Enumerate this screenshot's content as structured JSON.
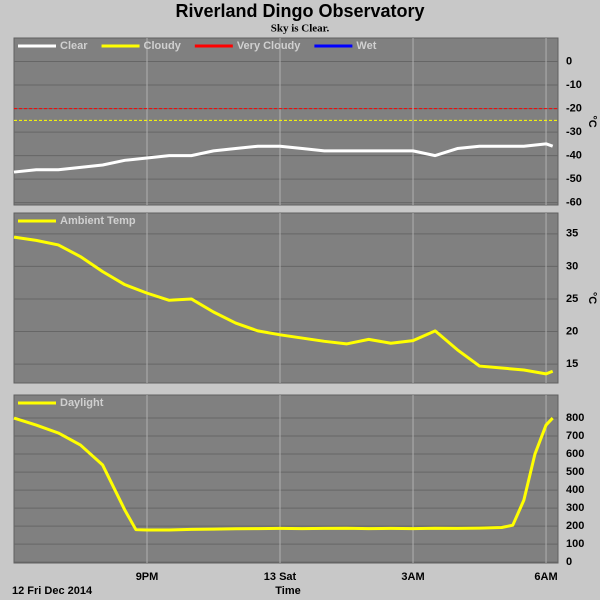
{
  "title": "Riverland Dingo Observatory",
  "subtitle": "Sky is Clear.",
  "chart_data": [
    {
      "type": "line",
      "ylabel": "°C",
      "x": [
        18,
        18.5,
        19,
        19.5,
        20,
        20.5,
        21,
        21.5,
        22,
        22.5,
        23,
        23.5,
        24,
        24.5,
        25,
        25.5,
        26,
        26.5,
        27,
        27.5,
        28,
        28.5,
        29,
        29.5,
        30,
        30.15
      ],
      "xlim": [
        18,
        30.27
      ],
      "series": [
        {
          "name": "Clear",
          "color": "#ffffff",
          "values": [
            -47,
            -46,
            -46,
            -45,
            -44,
            -42,
            -41,
            -40,
            -40,
            -38,
            -37,
            -36,
            -36,
            -37,
            -38,
            -38,
            -38,
            -38,
            -38,
            -40,
            -37,
            -36,
            -36,
            -36,
            -35,
            -36
          ]
        },
        {
          "name": "Cloudy",
          "color": "#ffff00",
          "threshold": -25
        },
        {
          "name": "Very Cloudy",
          "color": "#ff0000",
          "threshold": -20
        },
        {
          "name": "Wet",
          "color": "#0000ff"
        }
      ],
      "ylim": [
        -61,
        10
      ],
      "yticks": [
        0,
        -10,
        -20,
        -30,
        -40,
        -50,
        -60
      ],
      "grid": true
    },
    {
      "type": "line",
      "ylabel": "°C",
      "x": [
        18,
        18.5,
        19,
        19.5,
        20,
        20.5,
        21,
        21.5,
        22,
        22.5,
        23,
        23.5,
        24,
        24.5,
        25,
        25.5,
        26,
        26.5,
        27,
        27.5,
        28,
        28.5,
        29,
        29.5,
        30,
        30.15
      ],
      "xlim": [
        18,
        30.27
      ],
      "series": [
        {
          "name": "Ambient Temp",
          "color": "#ffff00",
          "values": [
            34.5,
            34,
            33.3,
            31.5,
            29.2,
            27.2,
            25.9,
            24.8,
            25,
            23,
            21.3,
            20.1,
            19.5,
            19,
            18.5,
            18.1,
            18.8,
            18.2,
            18.6,
            20.1,
            17.2,
            14.7,
            14.4,
            14.1,
            13.5,
            13.9
          ]
        }
      ],
      "ylim": [
        12.1,
        38.2
      ],
      "yticks": [
        15,
        20,
        25,
        30,
        35
      ],
      "grid": true
    },
    {
      "type": "line",
      "xlabel": "Time",
      "date_label": "12 Fri Dec 2014",
      "x": [
        18,
        18.5,
        19,
        19.5,
        20,
        20.5,
        20.75,
        21,
        21.5,
        22,
        22.5,
        23,
        23.5,
        24,
        24.5,
        25,
        25.5,
        26,
        26.5,
        27,
        27.5,
        28,
        28.5,
        29,
        29.25,
        29.5,
        29.75,
        30,
        30.15
      ],
      "xlim": [
        18,
        30.27
      ],
      "xticks": [
        {
          "value": 21,
          "label": "9PM"
        },
        {
          "value": 24,
          "label": "13 Sat"
        },
        {
          "value": 27,
          "label": "3AM"
        },
        {
          "value": 30,
          "label": "6AM"
        }
      ],
      "series": [
        {
          "name": "Daylight",
          "color": "#ffff00",
          "values": [
            800,
            761,
            717,
            650,
            539,
            289,
            180,
            178,
            178,
            182,
            183,
            185,
            186,
            187,
            186,
            187,
            188,
            186,
            187,
            186,
            188,
            187,
            189,
            192,
            205,
            344,
            600,
            761,
            800
          ]
        }
      ],
      "ylim": [
        -5,
        928
      ],
      "yticks": [
        0,
        100,
        200,
        300,
        400,
        500,
        600,
        700,
        800
      ],
      "grid": true
    }
  ]
}
